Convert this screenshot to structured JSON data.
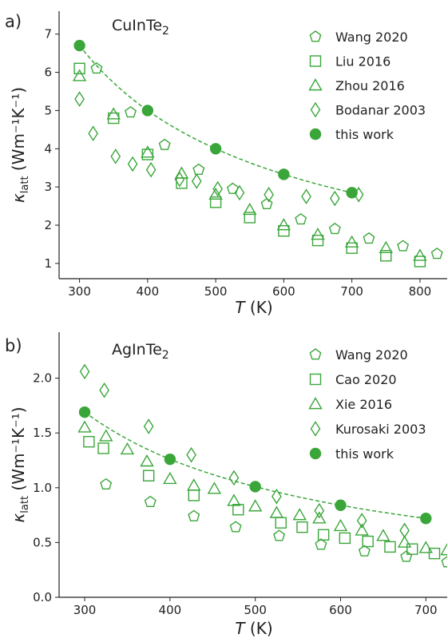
{
  "chart_data": [
    {
      "type": "scatter",
      "panel_label": "a)",
      "title": "CuInTe₂",
      "xlabel": "T (K)",
      "ylabel": "κ_latt (Wm⁻¹K⁻¹)",
      "xlim": [
        270,
        840
      ],
      "ylim": [
        0.6,
        7.6
      ],
      "xticks": [
        "300",
        "400",
        "500",
        "600",
        "700",
        "800"
      ],
      "xtick_values": [
        300,
        400,
        500,
        600,
        700,
        800
      ],
      "yticks": [
        "1",
        "2",
        "3",
        "4",
        "5",
        "6",
        "7"
      ],
      "ytick_values": [
        1,
        2,
        3,
        4,
        5,
        6,
        7
      ],
      "legend_position": "top-right",
      "color": "#3aa63a",
      "series": [
        {
          "name": "Wang 2020",
          "marker": "pentagon",
          "filled": false,
          "x": [
            325,
            375,
            425,
            475,
            525,
            575,
            625,
            675,
            725,
            775,
            825
          ],
          "y": [
            6.1,
            4.95,
            4.1,
            3.45,
            2.95,
            2.55,
            2.15,
            1.9,
            1.65,
            1.45,
            1.25
          ]
        },
        {
          "name": "Liu 2016",
          "marker": "square",
          "filled": false,
          "x": [
            300,
            350,
            400,
            450,
            500,
            550,
            600,
            650,
            700,
            750,
            800
          ],
          "y": [
            6.1,
            4.8,
            3.85,
            3.1,
            2.6,
            2.2,
            1.85,
            1.6,
            1.4,
            1.2,
            1.05
          ]
        },
        {
          "name": "Zhou 2016",
          "marker": "triangle",
          "filled": false,
          "x": [
            300,
            350,
            400,
            450,
            500,
            550,
            600,
            650,
            700,
            750,
            800
          ],
          "y": [
            5.9,
            4.9,
            3.9,
            3.35,
            2.8,
            2.4,
            2.0,
            1.75,
            1.55,
            1.4,
            1.2
          ]
        },
        {
          "name": "Bodanar 2003",
          "marker": "diamond",
          "filled": false,
          "x": [
            300,
            320,
            353,
            378,
            405,
            447,
            472,
            503,
            535,
            578,
            633,
            675,
            710
          ],
          "y": [
            5.3,
            4.4,
            3.8,
            3.6,
            3.45,
            3.2,
            3.15,
            2.95,
            2.85,
            2.8,
            2.75,
            2.7,
            2.8
          ]
        },
        {
          "name": "this work",
          "marker": "circle",
          "filled": true,
          "dashed_fit": true,
          "x": [
            300,
            400,
            500,
            600,
            700
          ],
          "y": [
            6.7,
            5.0,
            4.0,
            3.33,
            2.85
          ]
        }
      ]
    },
    {
      "type": "scatter",
      "panel_label": "b)",
      "title": "AgInTe₂",
      "xlabel": "T (K)",
      "ylabel": "κ_latt (Wm⁻¹K⁻¹)",
      "xlim": [
        270,
        725
      ],
      "ylim": [
        0,
        2.42
      ],
      "xticks": [
        "300",
        "400",
        "500",
        "600",
        "700"
      ],
      "xtick_values": [
        300,
        400,
        500,
        600,
        700
      ],
      "yticks": [
        "0.0",
        "0.5",
        "1.0",
        "1.5",
        "2.0"
      ],
      "ytick_values": [
        0,
        0.5,
        1.0,
        1.5,
        2.0
      ],
      "legend_position": "top-right",
      "color": "#3aa63a",
      "series": [
        {
          "name": "Wang 2020",
          "marker": "pentagon",
          "filled": false,
          "x": [
            325,
            377,
            428,
            477,
            528,
            577,
            628,
            677,
            725
          ],
          "y": [
            1.03,
            0.87,
            0.74,
            0.64,
            0.56,
            0.48,
            0.42,
            0.37,
            0.32
          ]
        },
        {
          "name": "Cao 2020",
          "marker": "square",
          "filled": false,
          "x": [
            305,
            322,
            375,
            428,
            480,
            530,
            555,
            580,
            605,
            632,
            658,
            684,
            710
          ],
          "y": [
            1.42,
            1.36,
            1.11,
            0.93,
            0.8,
            0.68,
            0.64,
            0.57,
            0.54,
            0.51,
            0.46,
            0.44,
            0.4
          ]
        },
        {
          "name": "Xie 2016",
          "marker": "triangle",
          "filled": false,
          "x": [
            300,
            325,
            350,
            373,
            400,
            428,
            452,
            475,
            500,
            525,
            552,
            575,
            600,
            625,
            650,
            675,
            700,
            725
          ],
          "y": [
            1.55,
            1.47,
            1.35,
            1.24,
            1.08,
            1.02,
            0.99,
            0.88,
            0.83,
            0.77,
            0.75,
            0.72,
            0.65,
            0.61,
            0.56,
            0.5,
            0.45,
            0.43
          ]
        },
        {
          "name": "Kurosaki 2003",
          "marker": "diamond",
          "filled": false,
          "x": [
            300,
            323,
            375,
            425,
            475,
            525,
            575,
            625,
            675
          ],
          "y": [
            2.06,
            1.89,
            1.56,
            1.3,
            1.09,
            0.92,
            0.79,
            0.7,
            0.61
          ]
        },
        {
          "name": "this work",
          "marker": "circle",
          "filled": true,
          "dashed_fit": true,
          "x": [
            300,
            400,
            500,
            600,
            700
          ],
          "y": [
            1.69,
            1.26,
            1.01,
            0.84,
            0.72
          ]
        }
      ]
    }
  ]
}
